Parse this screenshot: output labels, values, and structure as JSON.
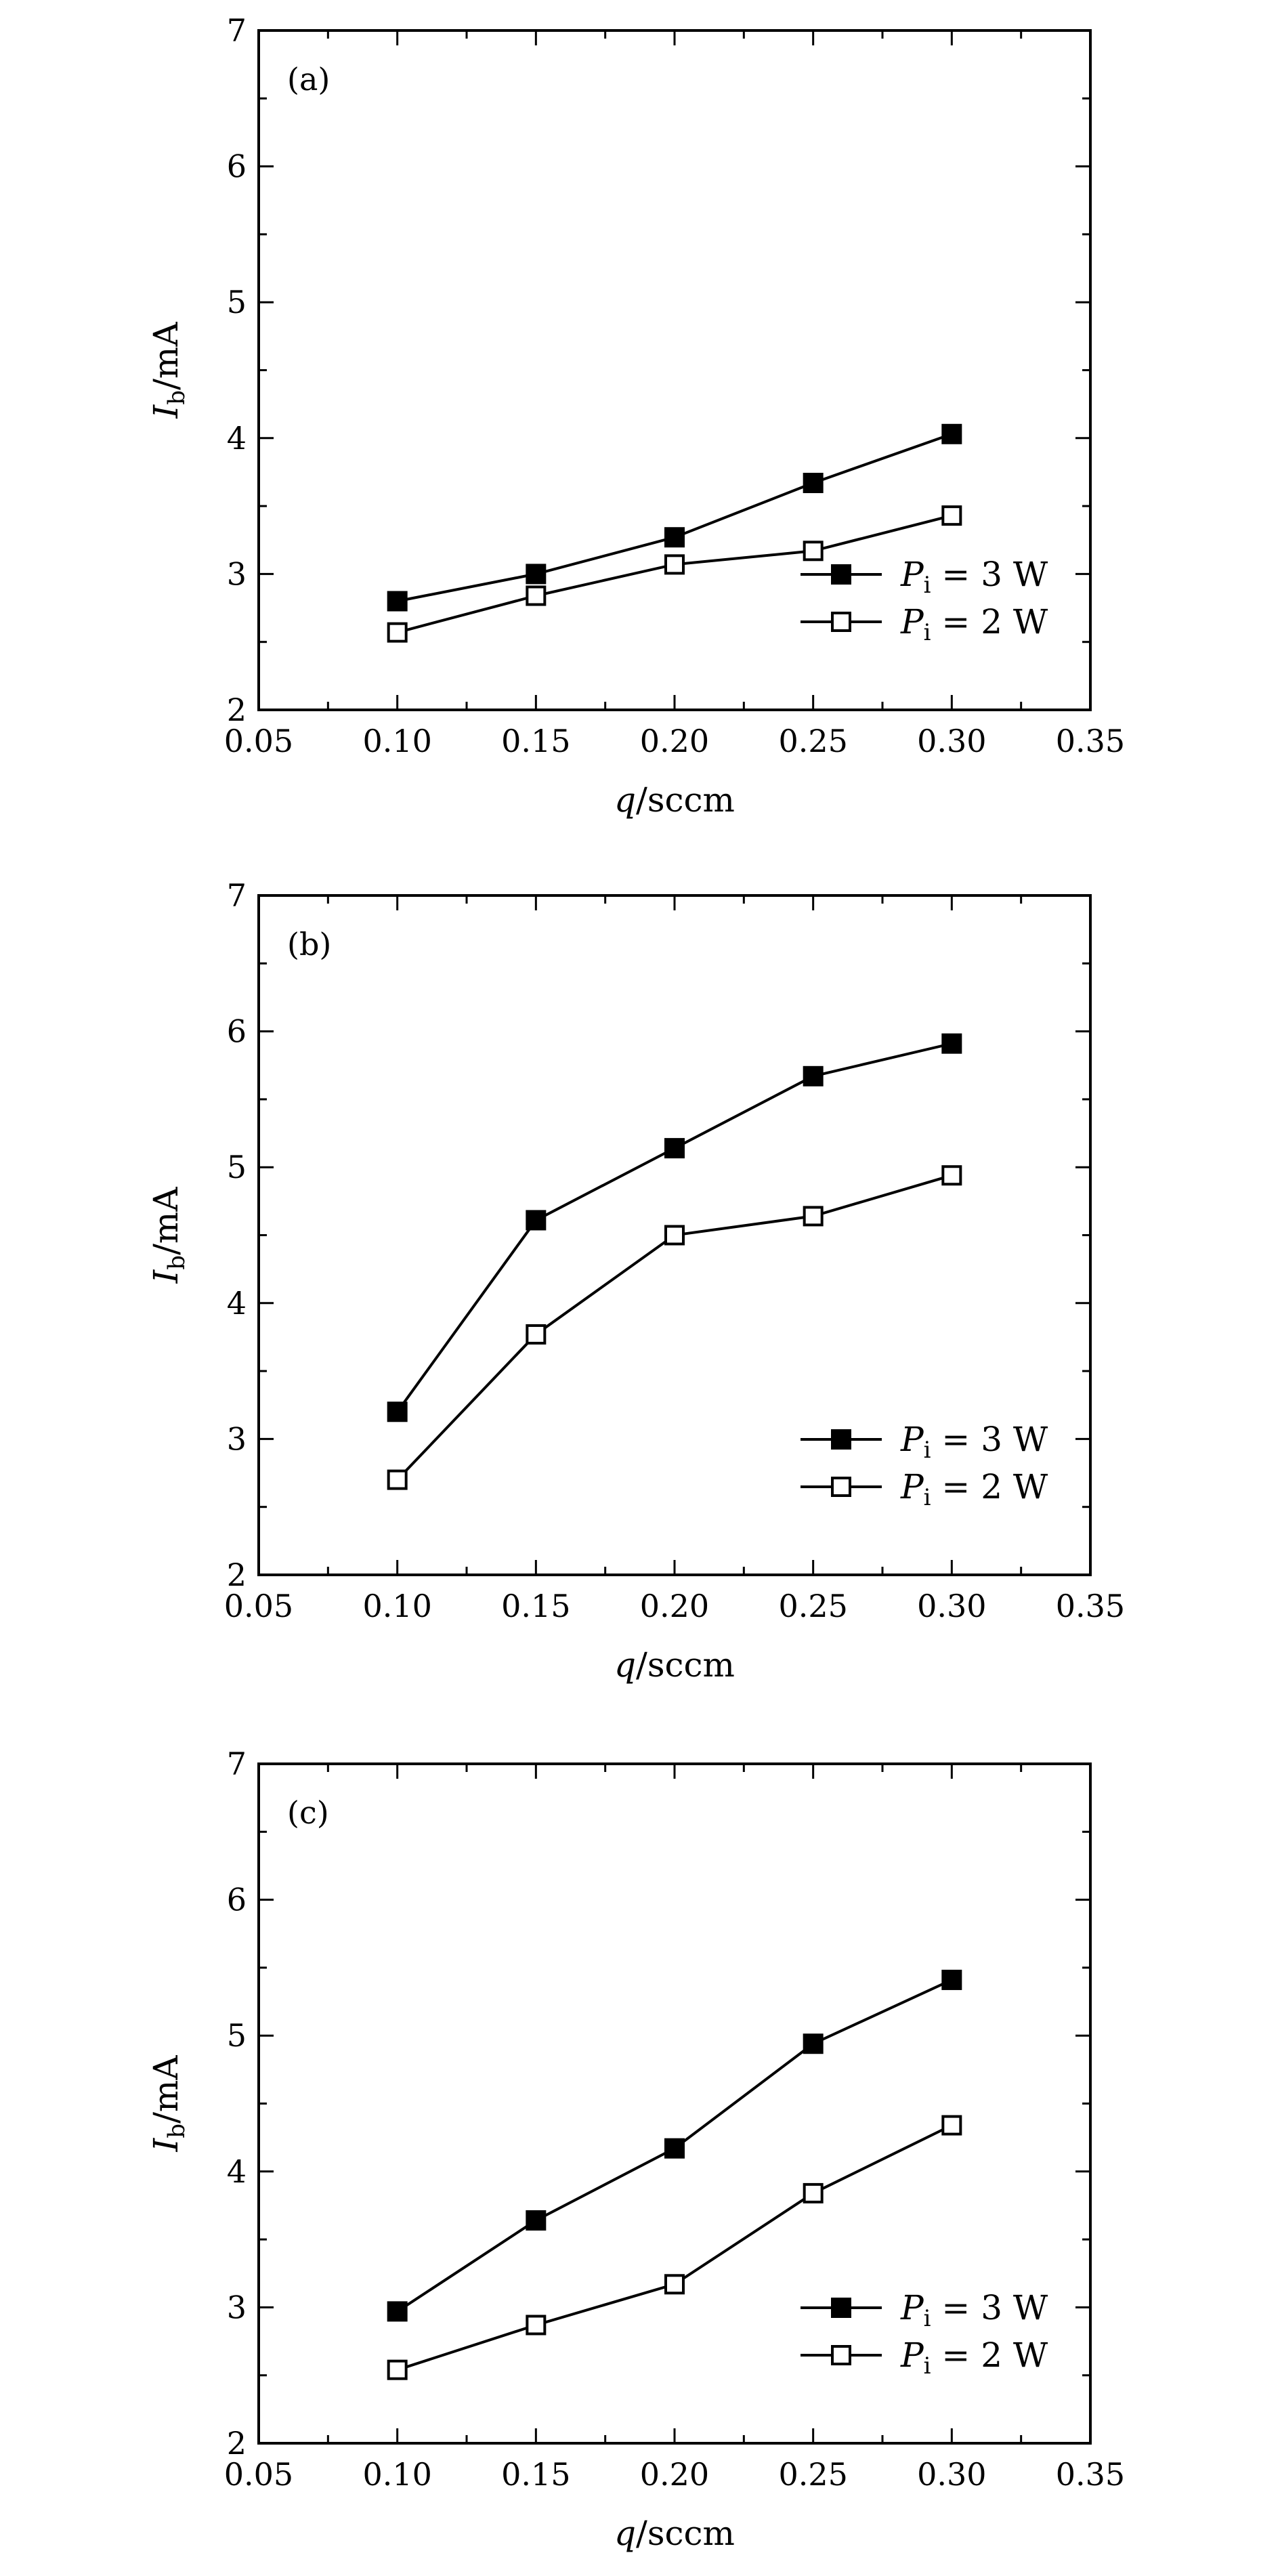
{
  "chart_data": [
    {
      "type": "line",
      "panel_label": "(a)",
      "xlabel": "q/sccm",
      "ylabel": "I_b/mA",
      "xlim": [
        0.05,
        0.35
      ],
      "ylim": [
        2,
        7
      ],
      "xticks": [
        "0.05",
        "0.10",
        "0.15",
        "0.20",
        "0.25",
        "0.30",
        "0.35"
      ],
      "yticks": [
        "2",
        "3",
        "4",
        "5",
        "6",
        "7"
      ],
      "grid": false,
      "legend_position": "bottom-right",
      "x": [
        0.1,
        0.15,
        0.2,
        0.25,
        0.3
      ],
      "series": [
        {
          "name": "P_i = 3 W",
          "marker": "filled-square",
          "values": [
            2.8,
            3.0,
            3.27,
            3.67,
            4.03
          ]
        },
        {
          "name": "P_i = 2 W",
          "marker": "open-square",
          "values": [
            2.57,
            2.84,
            3.07,
            3.17,
            3.43
          ]
        }
      ]
    },
    {
      "type": "line",
      "panel_label": "(b)",
      "xlabel": "q/sccm",
      "ylabel": "I_b/mA",
      "xlim": [
        0.05,
        0.35
      ],
      "ylim": [
        2,
        7
      ],
      "xticks": [
        "0.05",
        "0.10",
        "0.15",
        "0.20",
        "0.25",
        "0.30",
        "0.35"
      ],
      "yticks": [
        "2",
        "3",
        "4",
        "5",
        "6",
        "7"
      ],
      "grid": false,
      "legend_position": "bottom-right",
      "x": [
        0.1,
        0.15,
        0.2,
        0.25,
        0.3
      ],
      "series": [
        {
          "name": "P_i = 3 W",
          "marker": "filled-square",
          "values": [
            3.2,
            4.61,
            5.14,
            5.67,
            5.91
          ]
        },
        {
          "name": "P_i = 2 W",
          "marker": "open-square",
          "values": [
            2.7,
            3.77,
            4.5,
            4.64,
            4.94
          ]
        }
      ]
    },
    {
      "type": "line",
      "panel_label": "(c)",
      "xlabel": "q/sccm",
      "ylabel": "I_b/mA",
      "xlim": [
        0.05,
        0.35
      ],
      "ylim": [
        2,
        7
      ],
      "xticks": [
        "0.05",
        "0.10",
        "0.15",
        "0.20",
        "0.25",
        "0.30",
        "0.35"
      ],
      "yticks": [
        "2",
        "3",
        "4",
        "5",
        "6",
        "7"
      ],
      "grid": false,
      "legend_position": "bottom-right",
      "x": [
        0.1,
        0.15,
        0.2,
        0.25,
        0.3
      ],
      "series": [
        {
          "name": "P_i = 3 W",
          "marker": "filled-square",
          "values": [
            2.97,
            3.64,
            4.17,
            4.94,
            5.41
          ]
        },
        {
          "name": "P_i = 2 W",
          "marker": "open-square",
          "values": [
            2.54,
            2.87,
            3.17,
            3.84,
            4.34
          ]
        }
      ]
    }
  ]
}
